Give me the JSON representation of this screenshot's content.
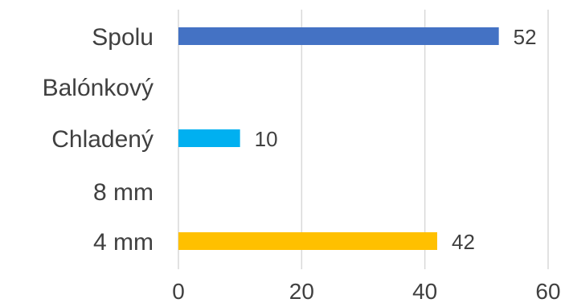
{
  "chart_data": {
    "type": "bar",
    "orientation": "horizontal",
    "categories": [
      "Spolu",
      "Balónkový",
      "Chladený",
      "8 mm",
      "4 mm"
    ],
    "values": [
      52,
      null,
      10,
      null,
      42
    ],
    "data_labels": [
      "52",
      "",
      "10",
      "",
      "42"
    ],
    "colors": [
      "#4472C4",
      null,
      "#00B0F0",
      null,
      "#FFC000"
    ],
    "xlim": [
      0,
      60
    ],
    "x_ticks": [
      0,
      20,
      40,
      60
    ],
    "x_tick_labels": [
      "0",
      "20",
      "40",
      "60"
    ],
    "grid": true,
    "title": "",
    "xlabel": "",
    "ylabel": ""
  }
}
